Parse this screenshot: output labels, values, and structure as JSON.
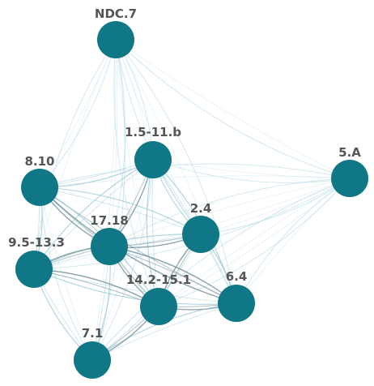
{
  "colors": {
    "node": "#0f7785",
    "label": "#555555",
    "edge_light": "#b9dde6",
    "edge_mid": "#8fc4d1",
    "edge_dark": "#6f8f99"
  },
  "nodes": [
    {
      "id": "NDC.7",
      "label": "NDC.7"
    },
    {
      "id": "1.5-11.b",
      "label": "1.5-11.b"
    },
    {
      "id": "5.A",
      "label": "5.A"
    },
    {
      "id": "8.10",
      "label": "8.10"
    },
    {
      "id": "2.4",
      "label": "2.4"
    },
    {
      "id": "17.18",
      "label": "17.18"
    },
    {
      "id": "9.5-13.3",
      "label": "9.5-13.3"
    },
    {
      "id": "6.4",
      "label": "6.4"
    },
    {
      "id": "14.2-15.1",
      "label": "14.2-15.1"
    },
    {
      "id": "7.1",
      "label": "7.1"
    }
  ],
  "edges": [
    {
      "source": "NDC.7",
      "target": "1.5-11.b",
      "weight": "light"
    },
    {
      "source": "NDC.7",
      "target": "5.A",
      "weight": "light"
    },
    {
      "source": "NDC.7",
      "target": "8.10",
      "weight": "light"
    },
    {
      "source": "NDC.7",
      "target": "2.4",
      "weight": "light"
    },
    {
      "source": "NDC.7",
      "target": "17.18",
      "weight": "light"
    },
    {
      "source": "NDC.7",
      "target": "9.5-13.3",
      "weight": "light"
    },
    {
      "source": "NDC.7",
      "target": "6.4",
      "weight": "light"
    },
    {
      "source": "NDC.7",
      "target": "14.2-15.1",
      "weight": "light"
    },
    {
      "source": "NDC.7",
      "target": "7.1",
      "weight": "light"
    },
    {
      "source": "1.5-11.b",
      "target": "5.A",
      "weight": "light"
    },
    {
      "source": "1.5-11.b",
      "target": "8.10",
      "weight": "mid"
    },
    {
      "source": "1.5-11.b",
      "target": "2.4",
      "weight": "mid"
    },
    {
      "source": "1.5-11.b",
      "target": "17.18",
      "weight": "dark"
    },
    {
      "source": "1.5-11.b",
      "target": "9.5-13.3",
      "weight": "mid"
    },
    {
      "source": "1.5-11.b",
      "target": "6.4",
      "weight": "mid"
    },
    {
      "source": "1.5-11.b",
      "target": "14.2-15.1",
      "weight": "mid"
    },
    {
      "source": "1.5-11.b",
      "target": "7.1",
      "weight": "light"
    },
    {
      "source": "5.A",
      "target": "8.10",
      "weight": "light"
    },
    {
      "source": "5.A",
      "target": "2.4",
      "weight": "light"
    },
    {
      "source": "5.A",
      "target": "17.18",
      "weight": "light"
    },
    {
      "source": "5.A",
      "target": "9.5-13.3",
      "weight": "light"
    },
    {
      "source": "5.A",
      "target": "6.4",
      "weight": "light"
    },
    {
      "source": "5.A",
      "target": "14.2-15.1",
      "weight": "light"
    },
    {
      "source": "5.A",
      "target": "7.1",
      "weight": "light"
    },
    {
      "source": "8.10",
      "target": "2.4",
      "weight": "mid"
    },
    {
      "source": "8.10",
      "target": "17.18",
      "weight": "dark"
    },
    {
      "source": "8.10",
      "target": "9.5-13.3",
      "weight": "mid"
    },
    {
      "source": "8.10",
      "target": "6.4",
      "weight": "dark"
    },
    {
      "source": "8.10",
      "target": "14.2-15.1",
      "weight": "mid"
    },
    {
      "source": "8.10",
      "target": "7.1",
      "weight": "light"
    },
    {
      "source": "2.4",
      "target": "17.18",
      "weight": "dark"
    },
    {
      "source": "2.4",
      "target": "9.5-13.3",
      "weight": "mid"
    },
    {
      "source": "2.4",
      "target": "6.4",
      "weight": "mid"
    },
    {
      "source": "2.4",
      "target": "14.2-15.1",
      "weight": "dark"
    },
    {
      "source": "2.4",
      "target": "7.1",
      "weight": "light"
    },
    {
      "source": "17.18",
      "target": "9.5-13.3",
      "weight": "dark"
    },
    {
      "source": "17.18",
      "target": "6.4",
      "weight": "dark"
    },
    {
      "source": "17.18",
      "target": "14.2-15.1",
      "weight": "dark"
    },
    {
      "source": "17.18",
      "target": "7.1",
      "weight": "mid"
    },
    {
      "source": "9.5-13.3",
      "target": "6.4",
      "weight": "mid"
    },
    {
      "source": "9.5-13.3",
      "target": "14.2-15.1",
      "weight": "dark"
    },
    {
      "source": "9.5-13.3",
      "target": "7.1",
      "weight": "mid"
    },
    {
      "source": "6.4",
      "target": "14.2-15.1",
      "weight": "dark"
    },
    {
      "source": "6.4",
      "target": "7.1",
      "weight": "mid"
    },
    {
      "source": "14.2-15.1",
      "target": "7.1",
      "weight": "dark"
    }
  ]
}
